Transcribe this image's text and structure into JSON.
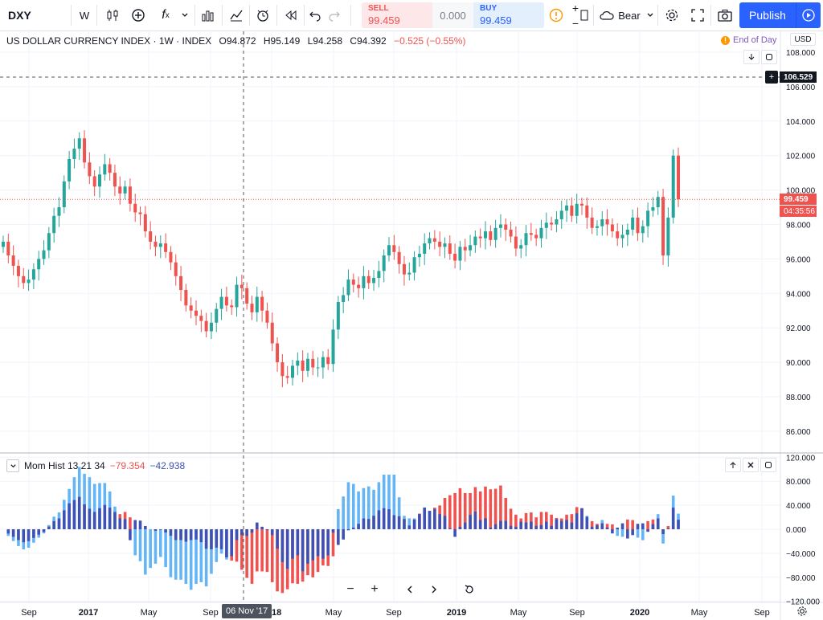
{
  "toolbar": {
    "symbol": "DXY",
    "interval": "W",
    "sell_label": "SELL",
    "sell_price": "99.459",
    "spread": "0.000",
    "buy_label": "BUY",
    "buy_price": "99.459",
    "sentiment": "Bear",
    "publish_label": "Publish"
  },
  "legend": {
    "title": "US DOLLAR CURRENCY INDEX · 1W · INDEX",
    "o": "O94.872",
    "h": "H95.149",
    "l": "L94.258",
    "c": "C94.392",
    "chg": "−0.525 (−0.55%)"
  },
  "end_of_day": "End of Day",
  "currency": "USD",
  "price_axis": [
    "108.000",
    "106.000",
    "104.000",
    "102.000",
    "100.000",
    "98.000",
    "96.000",
    "94.000",
    "92.000",
    "90.000",
    "88.000",
    "86.000"
  ],
  "crosshair_price": "106.529",
  "last_price": "99.459",
  "countdown": "04:35:56",
  "indicator": {
    "name": "Mom Hist 13 21 34",
    "v1": "−79.354",
    "v2": "−42.938"
  },
  "ind_axis": [
    "120.000",
    "80.000",
    "40.000",
    "0.000",
    "−40.000",
    "−80.000",
    "−120.000"
  ],
  "time_axis": [
    "Sep",
    "2017",
    "May",
    "Sep",
    "2018",
    "May",
    "Sep",
    "2019",
    "May",
    "Sep",
    "2020",
    "May",
    "Sep"
  ],
  "crosshair_time": "06 Nov '17",
  "colors": {
    "up": "#26a69a",
    "down": "#ef5350",
    "hist_dark": "#3f51b5",
    "hist_light": "#64b5f6",
    "hist_red": "#ef5350",
    "accent": "#2962ff"
  },
  "chart_data": {
    "type": "candlestick",
    "title": "US DOLLAR CURRENCY INDEX",
    "interval": "1W",
    "ylim": [
      85,
      109
    ],
    "x": [
      "Sep 2016",
      "2017",
      "May 2017",
      "Sep 2017",
      "2018",
      "May 2018",
      "Sep 2018",
      "2019",
      "May 2019",
      "Sep 2019",
      "2020"
    ],
    "close_path": [
      97.0,
      96.2,
      95.6,
      95.0,
      94.6,
      94.8,
      95.4,
      96.0,
      96.5,
      97.5,
      98.5,
      99.0,
      100.5,
      101.8,
      102.4,
      103.0,
      101.6,
      100.8,
      100.2,
      100.9,
      101.5,
      101.0,
      100.2,
      99.8,
      100.2,
      99.2,
      98.7,
      98.6,
      97.6,
      97.0,
      96.7,
      96.9,
      96.4,
      95.8,
      95.0,
      94.2,
      93.3,
      93.0,
      92.7,
      92.4,
      91.8,
      92.3,
      93.1,
      93.8,
      93.3,
      93.2,
      94.5,
      94.3,
      93.4,
      92.9,
      93.8,
      93.0,
      92.3,
      91.1,
      90.0,
      89.2,
      89.1,
      89.8,
      90.1,
      89.5,
      90.2,
      89.7,
      89.7,
      90.3,
      89.9,
      91.9,
      93.5,
      93.9,
      94.8,
      94.5,
      94.3,
      95.0,
      94.6,
      94.9,
      95.3,
      96.2,
      96.8,
      96.4,
      95.7,
      95.1,
      95.2,
      96.1,
      96.3,
      96.9,
      97.2,
      97.0,
      96.7,
      96.9,
      96.3,
      95.9,
      96.7,
      96.5,
      96.8,
      97.3,
      97.2,
      97.6,
      97.1,
      97.8,
      98.0,
      97.7,
      97.3,
      96.6,
      96.8,
      97.5,
      97.4,
      97.2,
      97.8,
      98.1,
      98.0,
      98.3,
      98.8,
      99.1,
      98.5,
      99.2,
      99.1,
      98.4,
      97.8,
      97.9,
      98.3,
      98.0,
      97.6,
      97.2,
      97.4,
      97.7,
      98.4,
      97.5,
      97.9,
      98.8,
      99.0,
      99.6,
      96.2,
      98.4,
      102.0,
      99.459
    ],
    "momentum_hist_min": -120,
    "momentum_hist_max": 120,
    "last_price": 99.459
  }
}
